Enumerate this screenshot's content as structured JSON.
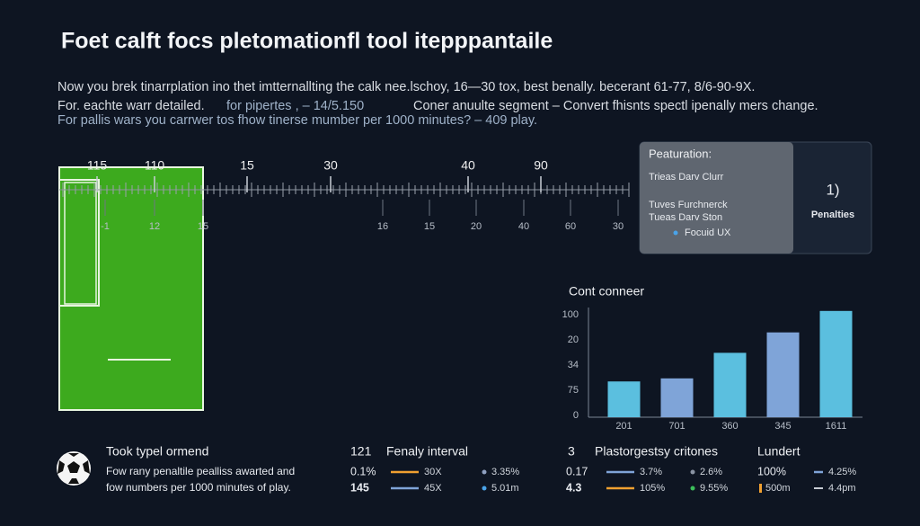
{
  "header": {
    "title": "Foet calft focs pletomationfl tool itepppantaile",
    "lines": [
      "Now you brek tinarrplation ino thet imtternallting the calk nee.lschoy, 16—30 tox, best benally. becerant 61-77, 8/6-90-9X.",
      "For. eachte warr detailed.",
      "for pipertes  ,  – 14/5.150",
      "Coner anuulte segment  –  Convert fhisnts spectl ipenally mers change.",
      "For pallis wars you carrwer tos fhow tinerse mumber per 1000 minutes? – 409 play."
    ]
  },
  "timeline": {
    "top_labels": [
      "115",
      "110",
      "15",
      "30",
      "40",
      "90"
    ],
    "bottom_labels": [
      "-1",
      "12",
      "15",
      "16",
      "15",
      "20",
      "40",
      "60",
      "30"
    ]
  },
  "panel": {
    "title": "Peaturation:",
    "items": [
      "Trieas Darv Clurr",
      "Tuves Furchnerck",
      "Tueas Darv Ston",
      "Focuid UX"
    ],
    "badge": "1)",
    "badge_label": "Penalties"
  },
  "bar_chart": {
    "title": "Cont conneer",
    "tick_labels": [
      "100",
      "20",
      "34",
      "75",
      "0"
    ],
    "categories": [
      "201",
      "701",
      "360",
      "345",
      "1611"
    ],
    "values": [
      35,
      38,
      63,
      83,
      104
    ],
    "colors": [
      "#5bbfdf",
      "#7fa4d8",
      "#5bbfdf",
      "#7fa4d8",
      "#5bbfdf"
    ],
    "ylim": [
      0,
      110
    ]
  },
  "footer": {
    "intro": {
      "heading": "Took typel ormend",
      "lines": [
        "Fow rany penaltile pealliss awarted and",
        "fow numbers per 1000 minutes of play."
      ]
    },
    "col1": {
      "num": "121",
      "heading": "Fenaly interval",
      "rows": [
        [
          "0.1%",
          "30X",
          "3.35%"
        ],
        [
          "145",
          "45X",
          "5.01m"
        ]
      ]
    },
    "col2": {
      "num": "3",
      "heading": "Plastorgestsy critones",
      "rows": [
        [
          "0.17",
          "3.7%",
          "2.6%"
        ],
        [
          "4.3",
          "105%",
          "9.55%"
        ]
      ]
    },
    "col3": {
      "heading": "Lundert",
      "rows": [
        [
          "100%",
          "4.25%"
        ],
        [
          "500m",
          "4.4pm"
        ]
      ]
    }
  }
}
